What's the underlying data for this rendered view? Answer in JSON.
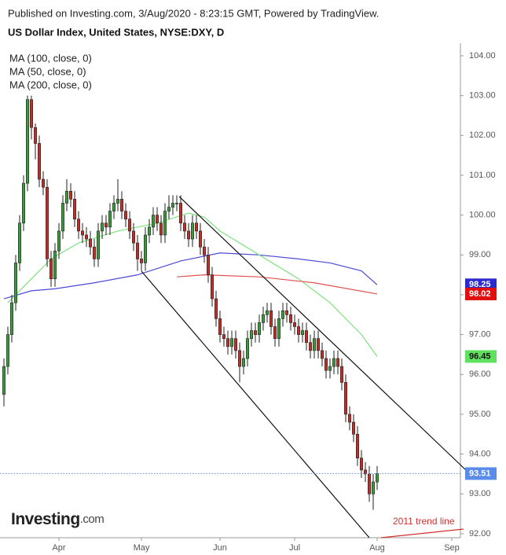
{
  "chart_data": {
    "type": "candlestick",
    "header": "Published on Investing.com, 3/Aug/2020 - 8:23:15 GMT, Powered by TradingView.",
    "title": "US Dollar Index, United States, NYSE:DXY, D",
    "logo": {
      "name": "Investing",
      "suffix": ".com"
    },
    "annotation": "2011 trend line",
    "up_color": "#3c9a3c",
    "down_color": "#c0302a",
    "x": [
      0,
      1,
      2,
      3,
      4,
      5,
      6,
      7,
      8,
      9,
      10,
      11,
      12,
      13,
      14,
      15,
      16,
      17,
      18,
      19,
      20,
      21,
      22,
      23,
      24,
      25,
      26,
      27,
      28,
      29,
      30,
      31,
      32,
      33,
      34,
      35,
      36,
      37,
      38,
      39,
      40,
      41,
      42,
      43,
      44,
      45,
      46,
      47,
      48,
      49,
      50,
      51,
      52,
      53,
      54,
      55,
      56,
      57,
      58,
      59,
      60,
      61,
      62,
      63,
      64,
      65,
      66,
      67,
      68,
      69,
      70,
      71,
      72,
      73,
      74,
      75,
      76,
      77,
      78,
      79,
      80,
      81,
      82,
      83,
      84,
      85,
      86,
      87,
      88,
      89,
      90,
      91,
      92,
      93,
      94,
      95
    ],
    "open": [
      95.5,
      96.2,
      97.0,
      97.8,
      98.8,
      99.8,
      100.8,
      102.9,
      102.2,
      101.8,
      100.9,
      100.7,
      98.9,
      98.4,
      99.1,
      99.6,
      100.3,
      100.6,
      100.4,
      99.9,
      99.6,
      99.5,
      99.4,
      99.2,
      98.9,
      99.6,
      99.8,
      99.7,
      100.1,
      100.3,
      100.4,
      100.1,
      99.9,
      99.6,
      99.3,
      98.9,
      98.8,
      99.5,
      99.7,
      100.0,
      99.8,
      99.5,
      100.1,
      100.2,
      100.3,
      100.3,
      99.8,
      99.6,
      99.4,
      99.8,
      99.6,
      99.2,
      99.0,
      98.5,
      97.9,
      97.4,
      97.0,
      96.9,
      96.7,
      96.9,
      96.6,
      96.2,
      96.4,
      96.9,
      97.1,
      97.0,
      97.3,
      97.5,
      97.6,
      97.2,
      96.9,
      97.4,
      97.6,
      97.5,
      97.3,
      97.2,
      97.0,
      97.1,
      96.8,
      96.6,
      96.9,
      96.6,
      96.4,
      96.1,
      96.2,
      96.4,
      96.2,
      95.8,
      95.0,
      94.8,
      94.5,
      93.9,
      93.6,
      93.5,
      93.0,
      93.3
    ],
    "high": [
      96.4,
      97.2,
      98.0,
      99.0,
      100.0,
      101.0,
      103.0,
      103.0,
      102.3,
      102.0,
      101.1,
      100.9,
      99.1,
      99.3,
      99.8,
      100.5,
      100.9,
      100.8,
      100.6,
      100.1,
      99.8,
      99.7,
      99.6,
      99.4,
      99.8,
      100.0,
      100.0,
      100.3,
      100.5,
      100.9,
      100.6,
      100.3,
      100.1,
      99.8,
      99.5,
      99.1,
      99.7,
      99.9,
      100.2,
      100.2,
      100.0,
      100.3,
      100.5,
      100.5,
      100.5,
      100.5,
      100.0,
      99.8,
      100.0,
      100.0,
      99.8,
      99.4,
      99.2,
      98.7,
      98.1,
      97.6,
      97.2,
      97.1,
      97.1,
      97.1,
      96.8,
      96.6,
      97.1,
      97.3,
      97.3,
      97.5,
      97.7,
      97.8,
      97.8,
      97.4,
      97.6,
      97.8,
      97.8,
      97.7,
      97.5,
      97.4,
      97.3,
      97.3,
      97.0,
      97.1,
      97.1,
      96.8,
      96.6,
      96.4,
      96.6,
      96.6,
      96.4,
      96.0,
      95.2,
      95.0,
      94.7,
      94.1,
      93.8,
      93.7,
      93.5,
      93.7
    ],
    "low": [
      95.2,
      96.0,
      96.8,
      97.6,
      98.6,
      99.6,
      100.6,
      101.9,
      101.4,
      100.7,
      100.5,
      98.7,
      98.2,
      98.2,
      98.9,
      99.4,
      100.1,
      100.2,
      99.7,
      99.4,
      99.3,
      99.2,
      99.0,
      98.7,
      98.7,
      99.4,
      99.5,
      99.5,
      99.9,
      100.1,
      99.9,
      99.7,
      99.4,
      99.1,
      98.6,
      98.6,
      98.6,
      99.3,
      99.5,
      99.6,
      99.3,
      99.3,
      99.9,
      100.0,
      100.1,
      99.6,
      99.4,
      99.2,
      99.2,
      99.4,
      99.0,
      98.8,
      98.3,
      97.7,
      97.2,
      96.8,
      96.7,
      96.5,
      96.5,
      96.4,
      95.8,
      96.0,
      96.2,
      96.7,
      96.8,
      96.8,
      97.1,
      97.3,
      97.0,
      96.7,
      96.7,
      97.2,
      97.3,
      97.1,
      97.0,
      96.8,
      96.8,
      96.6,
      96.4,
      96.4,
      96.4,
      96.2,
      95.9,
      95.9,
      96.0,
      96.0,
      95.6,
      94.8,
      94.6,
      94.3,
      93.7,
      93.4,
      93.3,
      92.8,
      92.6,
      93.1
    ],
    "close": [
      96.2,
      97.0,
      97.8,
      98.8,
      99.8,
      100.8,
      102.9,
      102.2,
      101.8,
      100.9,
      100.7,
      98.9,
      98.4,
      99.1,
      99.6,
      100.3,
      100.6,
      100.4,
      99.9,
      99.6,
      99.5,
      99.4,
      99.2,
      98.9,
      99.6,
      99.8,
      99.7,
      100.1,
      100.3,
      100.4,
      100.1,
      99.9,
      99.6,
      99.3,
      98.9,
      98.8,
      99.5,
      99.7,
      100.0,
      99.8,
      99.5,
      100.1,
      100.2,
      100.3,
      100.3,
      99.8,
      99.6,
      99.4,
      99.8,
      99.6,
      99.2,
      99.0,
      98.5,
      97.9,
      97.4,
      97.0,
      96.9,
      96.7,
      96.9,
      96.6,
      96.2,
      96.4,
      96.9,
      97.1,
      97.0,
      97.3,
      97.5,
      97.6,
      97.2,
      96.9,
      97.4,
      97.6,
      97.5,
      97.3,
      97.2,
      97.0,
      97.1,
      96.8,
      96.6,
      96.9,
      96.6,
      96.4,
      96.1,
      96.2,
      96.4,
      96.2,
      95.8,
      95.0,
      94.8,
      94.5,
      93.9,
      93.6,
      93.5,
      93.0,
      93.3,
      93.51
    ],
    "series": [
      {
        "name": "MA (100, close, 0)",
        "color": "#4a4ad8",
        "label_color": "#2a2ad0",
        "last": 98.25,
        "x": [
          0,
          7,
          13,
          23,
          34,
          45,
          55,
          65,
          75,
          83,
          91,
          95
        ],
        "values": [
          97.9,
          98.1,
          98.15,
          98.3,
          98.5,
          98.85,
          99.05,
          99.0,
          98.9,
          98.8,
          98.6,
          98.25
        ]
      },
      {
        "name": "MA (50, close, 0)",
        "color": "#7fe27f",
        "label_color": "#5fe05f",
        "last": 96.45,
        "x": [
          1,
          7,
          12,
          19,
          29,
          39,
          47,
          51,
          55,
          65,
          75,
          83,
          91,
          95
        ],
        "values": [
          97.8,
          98.4,
          98.9,
          99.3,
          99.6,
          99.8,
          100.05,
          99.95,
          99.6,
          99.0,
          98.4,
          97.8,
          97.0,
          96.45
        ]
      },
      {
        "name": "MA (200, close, 0)",
        "color": "#e05050",
        "label_color": "#e01010",
        "last": 98.02,
        "x": [
          44,
          51,
          65,
          79,
          95
        ],
        "values": [
          98.45,
          98.5,
          98.45,
          98.3,
          98.02
        ]
      }
    ],
    "last_price": 93.51,
    "last_price_color": "#5b8be8",
    "xlim": [
      -1,
      116
    ],
    "xticks": [
      {
        "value": 14,
        "label": "Apr"
      },
      {
        "value": 35,
        "label": "May"
      },
      {
        "value": 55,
        "label": "Jun"
      },
      {
        "value": 74,
        "label": "Jul"
      },
      {
        "value": 95,
        "label": "Aug"
      },
      {
        "value": 114,
        "label": "Sep"
      }
    ],
    "ylim": [
      91.9,
      104.3
    ],
    "yticks": [
      {
        "value": 92,
        "label": "92.00"
      },
      {
        "value": 93,
        "label": "93.00"
      },
      {
        "value": 94,
        "label": "94.00"
      },
      {
        "value": 95,
        "label": "95.00"
      },
      {
        "value": 96,
        "label": "96.00"
      },
      {
        "value": 97,
        "label": "97.00"
      },
      {
        "value": 98,
        "label": "98.00"
      },
      {
        "value": 99,
        "label": "99.00"
      },
      {
        "value": 100,
        "label": "100.00"
      },
      {
        "value": 101,
        "label": "101.00"
      },
      {
        "value": 102,
        "label": "102.00"
      },
      {
        "value": 103,
        "label": "103.00"
      },
      {
        "value": 104,
        "label": "104.00"
      }
    ]
  }
}
